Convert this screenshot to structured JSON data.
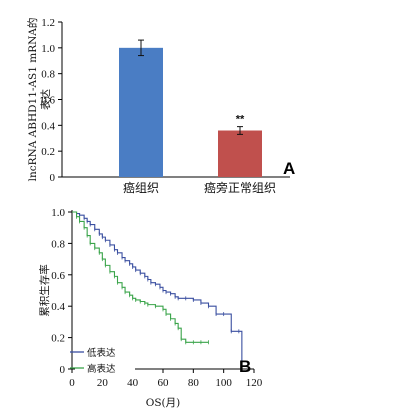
{
  "chart_data": [
    {
      "type": "bar",
      "panel_label": "A",
      "ylabel_line1": "lncRNA ABHD11-AS1 mRNA的",
      "ylabel_line2": "表达",
      "ylim": [
        0,
        1.2
      ],
      "yticks": [
        "0",
        "0.2",
        "0.4",
        "0.6",
        "0.8",
        "1.0",
        "1.2"
      ],
      "categories": [
        "癌组织",
        "癌旁正常组织"
      ],
      "values": [
        1.0,
        0.36
      ],
      "errors": [
        0.06,
        0.03
      ],
      "significance": [
        "",
        "**"
      ],
      "colors": [
        "#4a7dc4",
        "#c0504d"
      ]
    },
    {
      "type": "line",
      "subtype": "kaplan-meier",
      "panel_label": "B",
      "xlabel": "OS(月)",
      "ylabel": "累积生存率",
      "xlim": [
        0,
        120
      ],
      "ylim": [
        0,
        1.0
      ],
      "xticks": [
        "0",
        "20",
        "40",
        "60",
        "80",
        "100",
        "120"
      ],
      "yticks": [
        "0",
        "0.2",
        "0.4",
        "0.6",
        "0.8",
        "1.0"
      ],
      "legend_position": "bottom-left",
      "series": [
        {
          "name": "低表达",
          "color": "#3a4fa0",
          "x": [
            0,
            3,
            5,
            8,
            10,
            12,
            15,
            18,
            20,
            22,
            25,
            28,
            30,
            33,
            35,
            38,
            40,
            42,
            45,
            48,
            50,
            52,
            55,
            58,
            60,
            62,
            65,
            68,
            70,
            75,
            80,
            85,
            90,
            95,
            100,
            105,
            110,
            112
          ],
          "y": [
            1.0,
            0.99,
            0.98,
            0.96,
            0.94,
            0.92,
            0.89,
            0.86,
            0.84,
            0.82,
            0.79,
            0.76,
            0.74,
            0.71,
            0.69,
            0.67,
            0.65,
            0.63,
            0.61,
            0.59,
            0.57,
            0.55,
            0.54,
            0.52,
            0.5,
            0.49,
            0.48,
            0.46,
            0.45,
            0.45,
            0.44,
            0.42,
            0.4,
            0.35,
            0.35,
            0.24,
            0.24,
            0.0
          ]
        },
        {
          "name": "高表达",
          "color": "#3aa44a",
          "x": [
            0,
            3,
            5,
            8,
            10,
            12,
            15,
            18,
            20,
            22,
            25,
            28,
            30,
            33,
            35,
            38,
            40,
            42,
            45,
            48,
            50,
            55,
            60,
            62,
            65,
            68,
            70,
            72,
            75,
            80,
            85,
            90
          ],
          "y": [
            1.0,
            0.97,
            0.94,
            0.9,
            0.85,
            0.8,
            0.77,
            0.74,
            0.7,
            0.66,
            0.62,
            0.59,
            0.55,
            0.52,
            0.49,
            0.47,
            0.45,
            0.44,
            0.43,
            0.42,
            0.41,
            0.4,
            0.38,
            0.35,
            0.32,
            0.29,
            0.26,
            0.19,
            0.17,
            0.17,
            0.17,
            0.17
          ]
        }
      ]
    }
  ]
}
